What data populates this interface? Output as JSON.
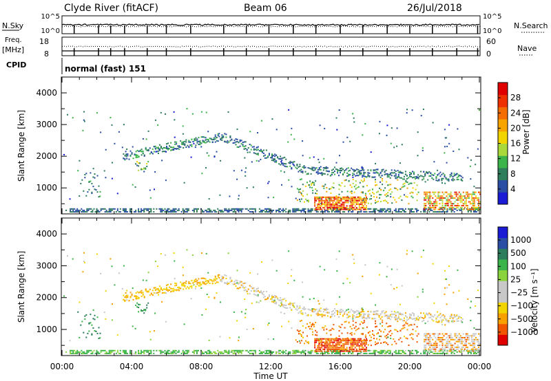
{
  "header": {
    "title": "Clyde River (fitACF)",
    "beam": "Beam 06",
    "date": "26/Jul/2018"
  },
  "top_panels": {
    "nsky_label": "N.Sky",
    "nsky_ticks": [
      "10^5",
      "10^0"
    ],
    "nsearch_label": "N.Search",
    "nsearch_ticks": [
      "10^5",
      "10^0"
    ],
    "freq_label_1": "Freq.",
    "freq_label_2": "[MHz]",
    "freq_ticks": [
      "18",
      "8"
    ],
    "nave_label": "Nave",
    "nave_ticks": [
      "60",
      "0"
    ],
    "cpid_label": "CPID",
    "cpid_value": "normal (fast) 151"
  },
  "chart_data": [
    {
      "type": "heatmap",
      "name": "power",
      "ylabel": "Slant Range [km]",
      "ylim": [
        180,
        4500
      ],
      "yticks": [
        "4000",
        "3000",
        "2000",
        "1000"
      ],
      "xlim": [
        0,
        24
      ],
      "colorbar": {
        "label": "Power [dB]",
        "ticks": [
          "28",
          "24",
          "20",
          "16",
          "12",
          "8",
          "4"
        ],
        "range": [
          0,
          30
        ],
        "colors": [
          "#1b1bd6",
          "#2b4ea5",
          "#2e7d5b",
          "#3bb54a",
          "#a8d83a",
          "#f2d400",
          "#f7a400",
          "#f46d00",
          "#ef3000",
          "#e00000"
        ]
      },
      "features": [
        {
          "desc": "ground scatter band",
          "t0": 0.2,
          "t1": 23.9,
          "r0": 180,
          "r1": 380
        },
        {
          "desc": "rising arc",
          "t0": 3.5,
          "t1": 9.0,
          "r0": 2000,
          "r1": 2600
        },
        {
          "desc": "descending arc",
          "t0": 9.0,
          "t1": 23.0,
          "r0": 1300,
          "r1": 2700
        },
        {
          "desc": "strong patch 15-17 UT",
          "t0": 14.5,
          "t1": 17.5,
          "r0": 300,
          "r1": 700
        },
        {
          "desc": "strong patch 21-24 UT",
          "t0": 21.0,
          "t1": 24.0,
          "r0": 300,
          "r1": 900
        }
      ]
    },
    {
      "type": "heatmap",
      "name": "velocity",
      "ylabel": "Slant Range [km]",
      "ylim": [
        180,
        4500
      ],
      "yticks": [
        "4000",
        "3000",
        "2000",
        "1000"
      ],
      "xlim": [
        0,
        24
      ],
      "xticks": [
        "00:00",
        "04:00",
        "08:00",
        "12:00",
        "16:00",
        "20:00",
        "00:00"
      ],
      "xlabel": "Time UT",
      "colorbar": {
        "label": "Velocity [m s⁻¹]",
        "ticks": [
          "1000",
          "500",
          "100",
          "25",
          "−25",
          "−100",
          "−500",
          "−1000"
        ],
        "range": [
          -1000,
          1000
        ],
        "colors": [
          "#e00000",
          "#f25500",
          "#f7a000",
          "#f2d400",
          "#c8c8c8",
          "#c8c8c8",
          "#8ad33c",
          "#3bb54a",
          "#2b7d5b",
          "#2b4ea5",
          "#1b1bd6"
        ]
      }
    }
  ]
}
